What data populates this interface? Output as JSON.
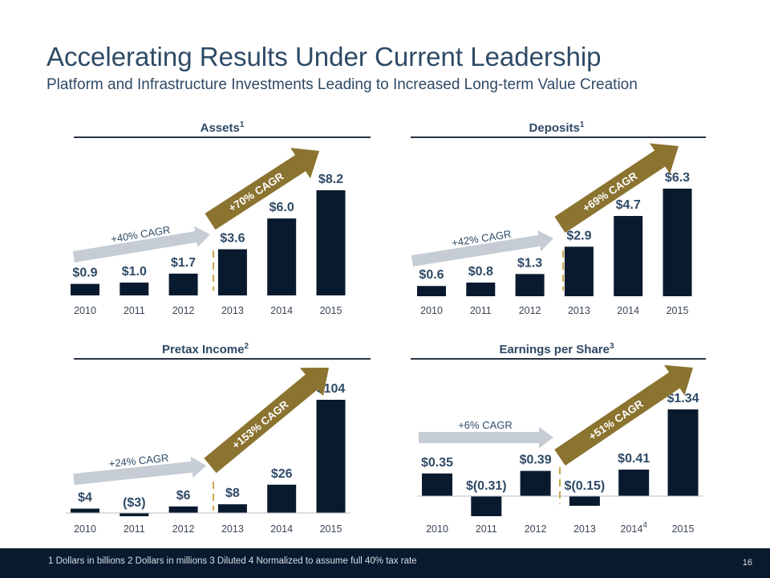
{
  "page": {
    "title": "Accelerating Results Under Current Leadership",
    "subtitle": "Platform and Infrastructure Investments Leading to Increased Long-term Value Creation",
    "footnote": "1  Dollars in billions   2  Dollars in millions   3  Diluted   4   Normalized to assume full 40% tax rate",
    "page_number": "16"
  },
  "colors": {
    "bar": "#0a1a2e",
    "gray_arrow": "#c5ccd4",
    "gold_arrow": "#8b7330",
    "divider": "#c9a84c",
    "text": "#2e4a66"
  },
  "chart_data": [
    {
      "type": "bar",
      "title": "Assets",
      "title_sup": "1",
      "categories": [
        "2010",
        "2011",
        "2012",
        "2013",
        "2014",
        "2015"
      ],
      "category_sups": [
        "",
        "",
        "",
        "",
        "",
        ""
      ],
      "values": [
        0.9,
        1.0,
        1.7,
        3.6,
        6.0,
        8.2
      ],
      "labels": [
        "$0.9",
        "$1.0",
        "$1.7",
        "$3.6",
        "$6.0",
        "$8.2"
      ],
      "ylim": [
        0,
        8.2
      ],
      "annotations": [
        "+40% CAGR",
        "+70% CAGR"
      ]
    },
    {
      "type": "bar",
      "title": "Deposits",
      "title_sup": "1",
      "categories": [
        "2010",
        "2011",
        "2012",
        "2013",
        "2014",
        "2015"
      ],
      "category_sups": [
        "",
        "",
        "",
        "",
        "",
        ""
      ],
      "values": [
        0.6,
        0.8,
        1.3,
        2.9,
        4.7,
        6.3
      ],
      "labels": [
        "$0.6",
        "$0.8",
        "$1.3",
        "$2.9",
        "$4.7",
        "$6.3"
      ],
      "ylim": [
        0,
        6.3
      ],
      "annotations": [
        "+42% CAGR",
        "+69% CAGR"
      ]
    },
    {
      "type": "bar",
      "title": "Pretax Income",
      "title_sup": "2",
      "categories": [
        "2010",
        "2011",
        "2012",
        "2013",
        "2014",
        "2015"
      ],
      "category_sups": [
        "",
        "",
        "",
        "",
        "",
        ""
      ],
      "values": [
        4,
        -3,
        6,
        8,
        26,
        104
      ],
      "labels": [
        "$4",
        "($3)",
        "$6",
        "$8",
        "$26",
        "$104"
      ],
      "ylim": [
        -3,
        104
      ],
      "annotations": [
        "+24% CAGR",
        "+153% CAGR"
      ]
    },
    {
      "type": "bar",
      "title": "Earnings per Share",
      "title_sup": "3",
      "categories": [
        "2010",
        "2011",
        "2012",
        "2013",
        "2014",
        "2015"
      ],
      "category_sups": [
        "",
        "",
        "",
        "",
        "4",
        ""
      ],
      "values": [
        0.35,
        -0.31,
        0.39,
        -0.15,
        0.41,
        1.34
      ],
      "labels": [
        "$0.35",
        "$(0.31)",
        "$0.39",
        "$(0.15)",
        "$0.41",
        "$1.34"
      ],
      "ylim": [
        -0.31,
        1.34
      ],
      "annotations": [
        "+6% CAGR",
        "+51% CAGR"
      ]
    }
  ]
}
